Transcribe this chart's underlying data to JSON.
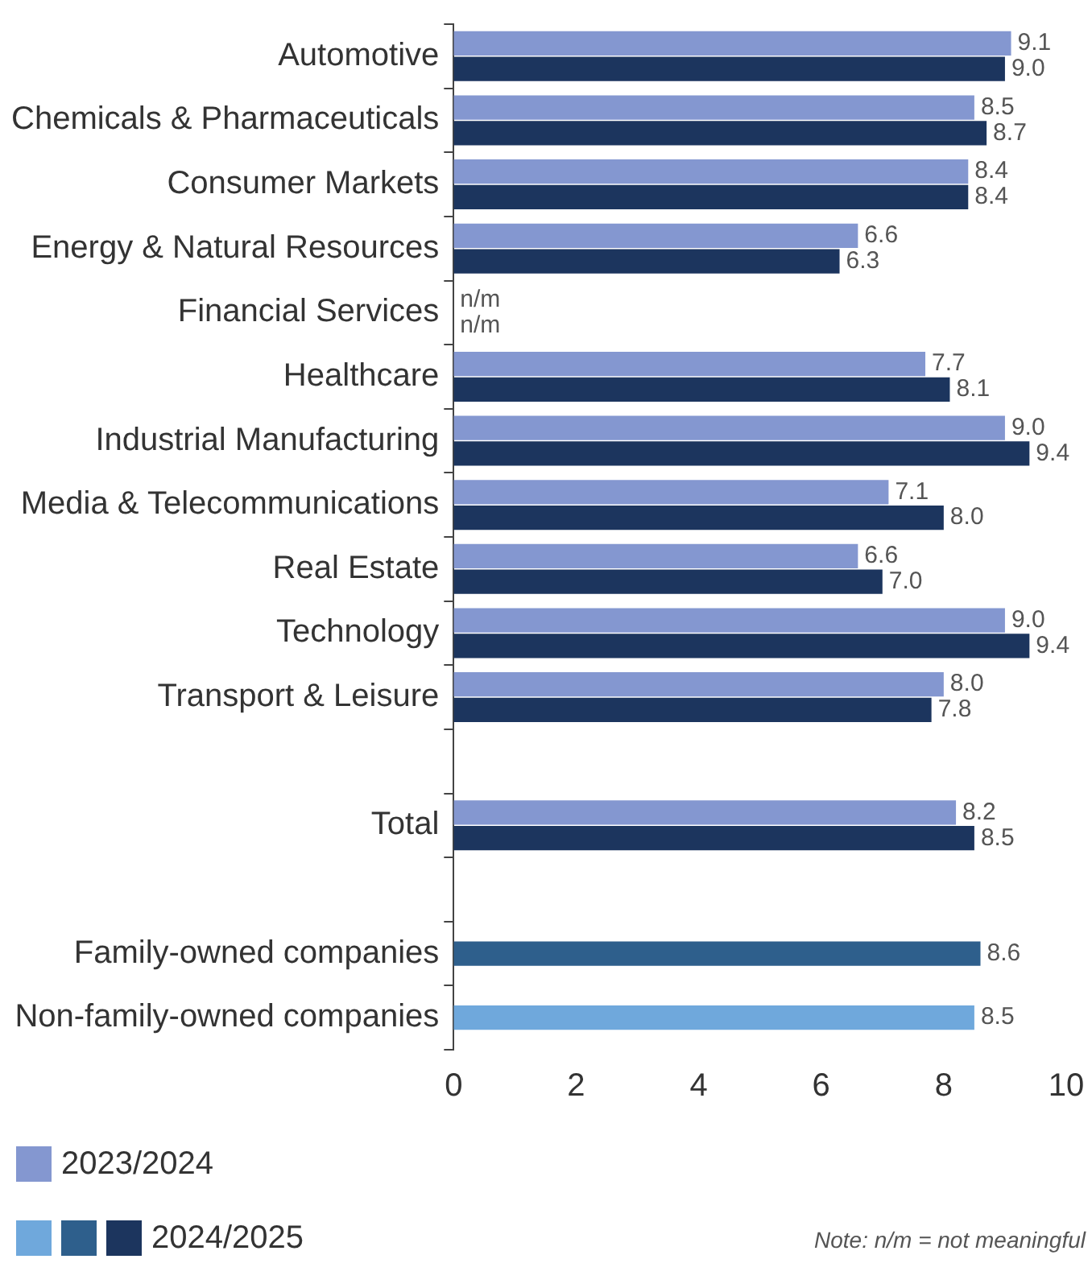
{
  "chart_data": {
    "type": "bar",
    "orientation": "horizontal",
    "categories": [
      "Automotive",
      "Chemicals & Pharmaceuticals",
      "Consumer Markets",
      "Energy & Natural Resources",
      "Financial Services",
      "Healthcare",
      "Industrial Manufacturing",
      "Media & Telecommunications",
      "Real Estate",
      "Technology",
      "Transport & Leisure",
      null,
      "Total",
      null,
      "Family-owned companies",
      "Non-family-owned companies"
    ],
    "series": [
      {
        "name": "2023/2024",
        "color": "#8497d0",
        "values": [
          9.1,
          8.5,
          8.4,
          6.6,
          null,
          7.7,
          9.0,
          7.1,
          6.6,
          9.0,
          8.0,
          null,
          8.2,
          null,
          null,
          null
        ],
        "value_labels": [
          "9.1",
          "8.5",
          "8.4",
          "6.6",
          "n/m",
          "7.7",
          "9.0",
          "7.1",
          "6.6",
          "9.0",
          "8.0",
          null,
          "8.2",
          null,
          null,
          null
        ]
      },
      {
        "name": "2024/2025",
        "colors": [
          "#1c355e",
          "#1c355e",
          "#1c355e",
          "#1c355e",
          "#1c355e",
          "#1c355e",
          "#1c355e",
          "#1c355e",
          "#1c355e",
          "#1c355e",
          "#1c355e",
          "#1c355e",
          "#1c355e",
          "#1c355e",
          "#2e5f8c",
          "#6fa8dc"
        ],
        "values": [
          9.0,
          8.7,
          8.4,
          6.3,
          null,
          8.1,
          9.4,
          8.0,
          7.0,
          9.4,
          7.8,
          null,
          8.5,
          null,
          8.6,
          8.5
        ],
        "value_labels": [
          "9.0",
          "8.7",
          "8.4",
          "6.3",
          "n/m",
          "8.1",
          "9.4",
          "8.0",
          "7.0",
          "9.4",
          "7.8",
          null,
          "8.5",
          null,
          "8.6",
          "8.5"
        ]
      }
    ],
    "xlim": [
      0,
      10
    ],
    "xticks": [
      0,
      2,
      4,
      6,
      8,
      10
    ],
    "grid": false,
    "legend": "bottom left",
    "annotations": [
      "Note: n/m = not meaningful"
    ]
  }
}
